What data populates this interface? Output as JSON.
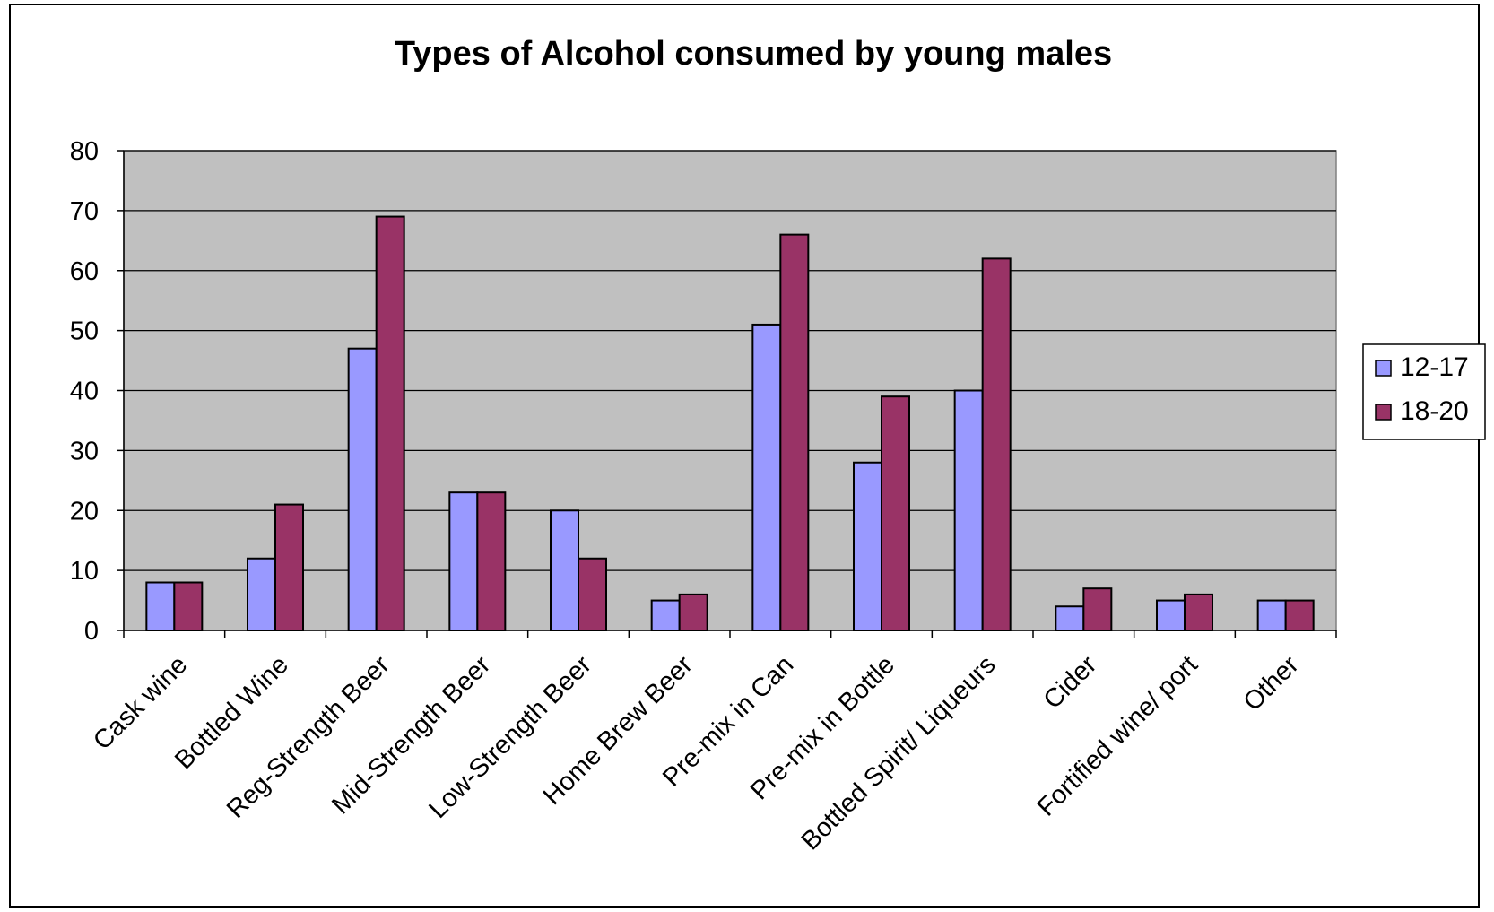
{
  "chart_data": {
    "type": "bar",
    "title": "Types of Alcohol consumed by young males",
    "xlabel": "",
    "ylabel": "",
    "ylim": [
      0,
      80
    ],
    "ytick_step": 10,
    "yticks": [
      "0",
      "10",
      "20",
      "30",
      "40",
      "50",
      "60",
      "70",
      "80"
    ],
    "grid": true,
    "legend_position": "right",
    "plot_background": "#c0c0c0",
    "categories": [
      "Cask wine",
      "Bottled Wine",
      "Reg-Strength Beer",
      "Mid-Strength Beer",
      "Low-Strength Beer",
      "Home Brew Beer",
      "Pre-mix in Can",
      "Pre-mix in Bottle",
      "Bottled Spirit/ Liqueurs",
      "Cider",
      "Fortified wine/ port",
      "Other"
    ],
    "series": [
      {
        "name": "12-17",
        "color": "#9999ff",
        "values": [
          8,
          12,
          47,
          23,
          20,
          5,
          51,
          28,
          40,
          4,
          5,
          5
        ]
      },
      {
        "name": "18-20",
        "color": "#993366",
        "values": [
          8,
          21,
          69,
          23,
          12,
          6,
          66,
          39,
          62,
          7,
          6,
          5
        ]
      }
    ]
  }
}
